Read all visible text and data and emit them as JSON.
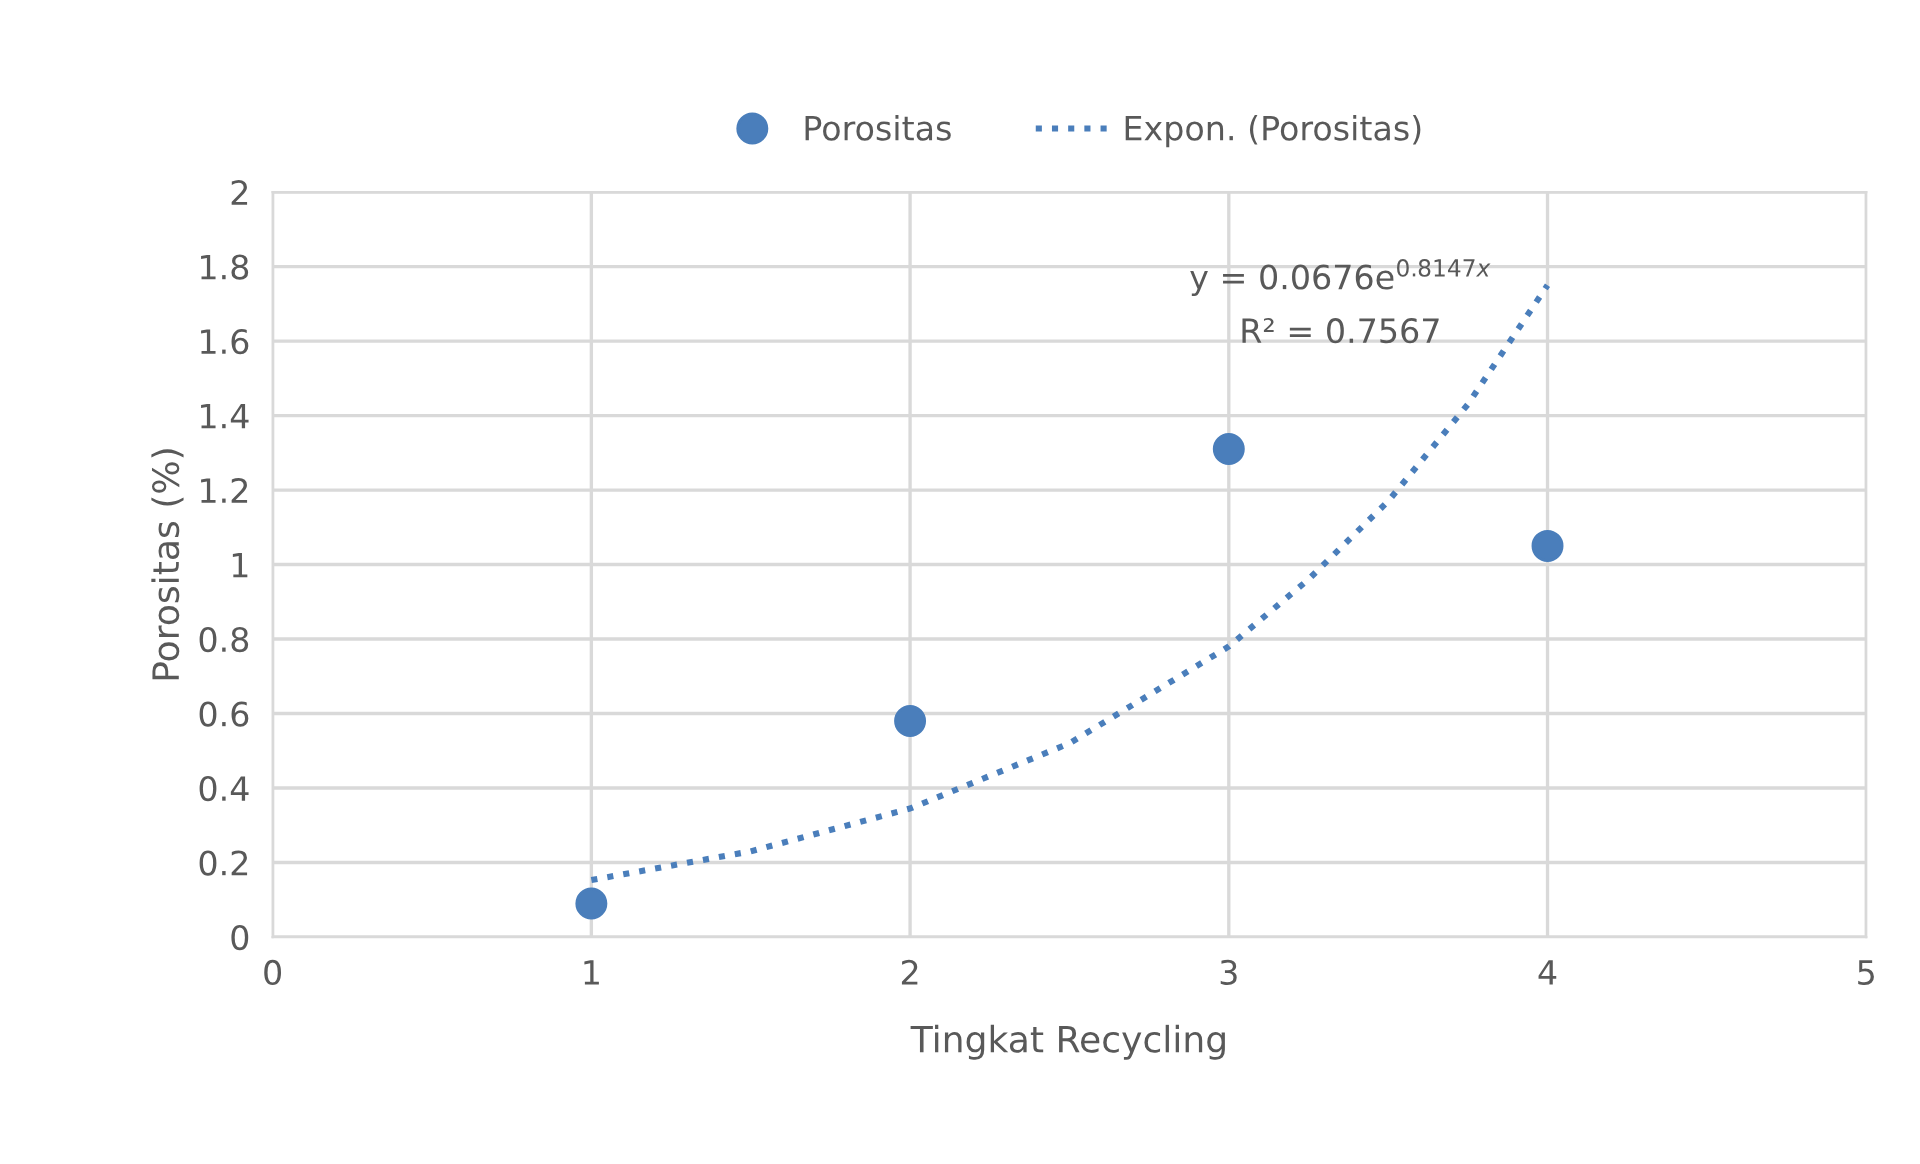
{
  "chart_data": {
    "type": "scatter",
    "xlabel": "Tingkat Recycling",
    "ylabel": "Porositas (%)",
    "xlim": [
      0,
      5
    ],
    "xticks": [
      0,
      1,
      2,
      3,
      4,
      5
    ],
    "ylim": [
      0,
      2
    ],
    "yticks": [
      0,
      0.2,
      0.4,
      0.6,
      0.8,
      1,
      1.2,
      1.4,
      1.6,
      1.8,
      2
    ],
    "grid": true,
    "legend": "top",
    "marker": "circle",
    "series": [
      {
        "name": "Porositas",
        "color": "#4a7ebb",
        "x": [
          1,
          2,
          3,
          4
        ],
        "values": [
          0.09,
          0.58,
          1.31,
          1.05
        ]
      },
      {
        "name": "Expon. (Porositas)",
        "type": "line",
        "line_style": "dotted",
        "marker": "none",
        "color": "#4a7ebb",
        "x": [
          1,
          1.5,
          2,
          2.5,
          3,
          3.25,
          3.5,
          3.75,
          4
        ],
        "values": [
          0.153,
          0.23,
          0.345,
          0.52,
          0.78,
          0.96,
          1.17,
          1.43,
          1.75
        ]
      }
    ],
    "annotations": [
      "y = 0.0676e$^{0.8147x}$",
      "R² = 0.7567"
    ]
  }
}
